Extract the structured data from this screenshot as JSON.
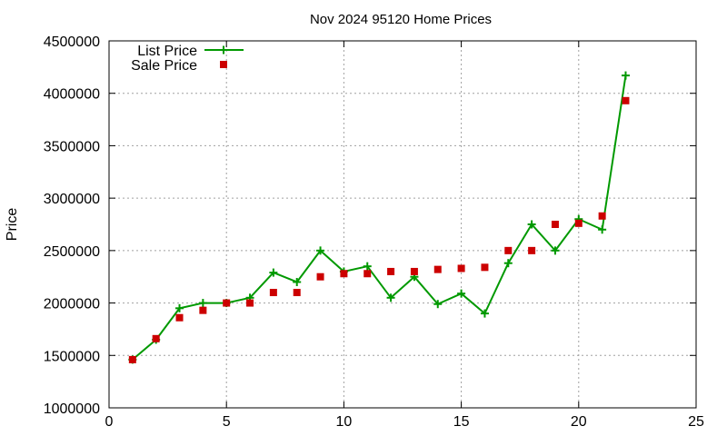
{
  "chart_data": {
    "type": "line",
    "title": "Nov 2024 95120 Home Prices",
    "xlabel": "",
    "ylabel": "Price",
    "xlim": [
      0,
      25
    ],
    "ylim": [
      1000000,
      4500000
    ],
    "x_ticks": [
      0,
      5,
      10,
      15,
      20,
      25
    ],
    "x_tick_labels": [
      "0",
      "5",
      "10",
      "15",
      "20",
      "25"
    ],
    "y_ticks": [
      1000000,
      1500000,
      2000000,
      2500000,
      3000000,
      3500000,
      4000000,
      4500000
    ],
    "y_tick_labels": [
      "1000000",
      "1500000",
      "2000000",
      "2500000",
      "3000000",
      "3500000",
      "4000000",
      "4500000"
    ],
    "grid": true,
    "legend_position": "top-left",
    "series": [
      {
        "name": "List Price",
        "style": "line-with-plus-markers",
        "color": "#009900",
        "x": [
          1,
          2,
          3,
          4,
          5,
          6,
          7,
          8,
          9,
          10,
          11,
          12,
          13,
          14,
          15,
          16,
          17,
          18,
          19,
          20,
          21,
          22
        ],
        "y": [
          1460000,
          1650000,
          1950000,
          2000000,
          2000000,
          2050000,
          2290000,
          2200000,
          2500000,
          2300000,
          2350000,
          2050000,
          2250000,
          1990000,
          2090000,
          1900000,
          2380000,
          2750000,
          2500000,
          2800000,
          2700000,
          4170000
        ]
      },
      {
        "name": "Sale Price",
        "style": "square-markers",
        "color": "#cc0000",
        "x": [
          1,
          2,
          3,
          4,
          5,
          6,
          7,
          8,
          9,
          10,
          11,
          12,
          13,
          14,
          15,
          16,
          17,
          18,
          19,
          20,
          21,
          22
        ],
        "y": [
          1460000,
          1660000,
          1860000,
          1930000,
          2000000,
          2000000,
          2100000,
          2100000,
          2250000,
          2280000,
          2280000,
          2300000,
          2300000,
          2320000,
          2330000,
          2340000,
          2500000,
          2500000,
          2750000,
          2760000,
          2830000,
          3930000
        ]
      }
    ]
  }
}
